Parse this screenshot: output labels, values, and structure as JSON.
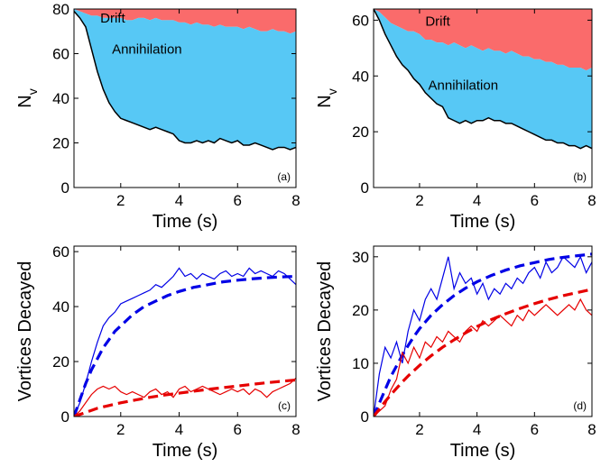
{
  "colors": {
    "drift_fill": "#fa6b6b",
    "annihilation_fill": "#57c8f5",
    "blue_line": "#0000e6",
    "red_line": "#e60000",
    "frame": "#000000"
  },
  "chart_data": [
    {
      "id": "a",
      "type": "area",
      "panel_label": "(a)",
      "xlabel": "Time (s)",
      "ylabel": "N",
      "ylabel_sub": "v",
      "xlim": [
        0.4,
        8
      ],
      "ylim": [
        0,
        80
      ],
      "xticks": [
        2,
        4,
        6,
        8
      ],
      "yticks": [
        0,
        20,
        40,
        60,
        80
      ],
      "grid": false,
      "annotations": {
        "drift": "Drift",
        "annihilation": "Annihilation"
      },
      "series": [
        {
          "name": "Annihilation",
          "x": [
            0.4,
            0.6,
            0.8,
            1.0,
            1.2,
            1.4,
            1.6,
            1.8,
            2.0,
            2.2,
            2.4,
            2.6,
            2.8,
            3.0,
            3.2,
            3.4,
            3.6,
            3.8,
            4.0,
            4.2,
            4.4,
            4.6,
            4.8,
            5.0,
            5.2,
            5.4,
            5.6,
            5.8,
            6.0,
            6.2,
            6.4,
            6.6,
            6.8,
            7.0,
            7.2,
            7.4,
            7.6,
            7.8,
            8.0
          ],
          "y": [
            79,
            76,
            72,
            62,
            52,
            44,
            38,
            34,
            31,
            30,
            29,
            28,
            27,
            26,
            27,
            26,
            25,
            24,
            21,
            20,
            20,
            21,
            20,
            21,
            20,
            22,
            21,
            20,
            21,
            19,
            19,
            20,
            19,
            18,
            17,
            18,
            18,
            17,
            18
          ]
        },
        {
          "name": "Drift",
          "x": [
            0.4,
            0.6,
            0.8,
            1.0,
            1.2,
            1.4,
            1.6,
            1.8,
            2.0,
            2.2,
            2.4,
            2.6,
            2.8,
            3.0,
            3.2,
            3.4,
            3.6,
            3.8,
            4.0,
            4.2,
            4.4,
            4.6,
            4.8,
            5.0,
            5.2,
            5.4,
            5.6,
            5.8,
            6.0,
            6.2,
            6.4,
            6.6,
            6.8,
            7.0,
            7.2,
            7.4,
            7.6,
            7.8,
            8.0
          ],
          "y": [
            80,
            79,
            78,
            77,
            77,
            76,
            76,
            76,
            76,
            75,
            75,
            76,
            76,
            75,
            76,
            75,
            75,
            75,
            74,
            74,
            73,
            74,
            73,
            73,
            72,
            73,
            72,
            72,
            72,
            71,
            72,
            71,
            70,
            70,
            71,
            70,
            70,
            69,
            70
          ]
        }
      ]
    },
    {
      "id": "b",
      "type": "area",
      "panel_label": "(b)",
      "xlabel": "Time (s)",
      "ylabel": "N",
      "ylabel_sub": "v",
      "xlim": [
        0.4,
        8
      ],
      "ylim": [
        0,
        64
      ],
      "xticks": [
        2,
        4,
        6,
        8
      ],
      "yticks": [
        0,
        20,
        40,
        60
      ],
      "grid": false,
      "annotations": {
        "drift": "Drift",
        "annihilation": "Annihilation"
      },
      "series": [
        {
          "name": "Annihilation",
          "x": [
            0.4,
            0.6,
            0.8,
            1.0,
            1.2,
            1.4,
            1.6,
            1.8,
            2.0,
            2.2,
            2.4,
            2.6,
            2.8,
            3.0,
            3.2,
            3.4,
            3.6,
            3.8,
            4.0,
            4.2,
            4.4,
            4.6,
            4.8,
            5.0,
            5.2,
            5.4,
            5.6,
            5.8,
            6.0,
            6.2,
            6.4,
            6.6,
            6.8,
            7.0,
            7.2,
            7.4,
            7.6,
            7.8,
            8.0
          ],
          "y": [
            64,
            60,
            55,
            51,
            47,
            44,
            42,
            39,
            37,
            34,
            32,
            30,
            29,
            25,
            24,
            23,
            24,
            23,
            24,
            24,
            25,
            24,
            24,
            23,
            23,
            22,
            21,
            20,
            19,
            18,
            17,
            17,
            16,
            16,
            15,
            15,
            14,
            15,
            14
          ]
        },
        {
          "name": "Drift",
          "x": [
            0.4,
            0.6,
            0.8,
            1.0,
            1.2,
            1.4,
            1.6,
            1.8,
            2.0,
            2.2,
            2.4,
            2.6,
            2.8,
            3.0,
            3.2,
            3.4,
            3.6,
            3.8,
            4.0,
            4.2,
            4.4,
            4.6,
            4.8,
            5.0,
            5.2,
            5.4,
            5.6,
            5.8,
            6.0,
            6.2,
            6.4,
            6.6,
            6.8,
            7.0,
            7.2,
            7.4,
            7.6,
            7.8,
            8.0
          ],
          "y": [
            64,
            63,
            61,
            59,
            58,
            57,
            56,
            56,
            55,
            53,
            53,
            52,
            52,
            51,
            52,
            51,
            50,
            51,
            50,
            49,
            50,
            49,
            49,
            48,
            49,
            48,
            47,
            47,
            46,
            46,
            45,
            45,
            44,
            44,
            43,
            43,
            43,
            42,
            43
          ]
        }
      ]
    },
    {
      "id": "c",
      "type": "line",
      "panel_label": "(c)",
      "xlabel": "Time (s)",
      "ylabel": "Vortices Decayed",
      "xlim": [
        0.4,
        8
      ],
      "ylim": [
        0,
        62
      ],
      "xticks": [
        2,
        4,
        6,
        8
      ],
      "yticks": [
        0,
        20,
        40,
        60
      ],
      "grid": false,
      "series": [
        {
          "color": "blue",
          "style": "solid",
          "x": [
            0.4,
            0.6,
            0.8,
            1.0,
            1.2,
            1.4,
            1.6,
            1.8,
            2.0,
            2.2,
            2.4,
            2.6,
            2.8,
            3.0,
            3.2,
            3.4,
            3.6,
            3.8,
            4.0,
            4.2,
            4.4,
            4.6,
            4.8,
            5.0,
            5.2,
            5.4,
            5.6,
            5.8,
            6.0,
            6.2,
            6.4,
            6.6,
            6.8,
            7.0,
            7.2,
            7.4,
            7.6,
            7.8,
            8.0
          ],
          "y": [
            0,
            5,
            12,
            20,
            27,
            33,
            36,
            38,
            41,
            42,
            43,
            44,
            45,
            46,
            48,
            47,
            49,
            51,
            54,
            51,
            52,
            50,
            52,
            51,
            50,
            52,
            53,
            51,
            52,
            51,
            54,
            52,
            53,
            52,
            51,
            53,
            52,
            50,
            48
          ]
        },
        {
          "color": "blue",
          "style": "dashed",
          "x": [
            0.4,
            0.6,
            0.8,
            1.0,
            1.2,
            1.4,
            1.6,
            1.8,
            2.0,
            2.4,
            2.8,
            3.2,
            3.6,
            4.0,
            4.5,
            5.0,
            5.5,
            6.0,
            6.5,
            7.0,
            7.5,
            8.0
          ],
          "y": [
            0,
            6,
            12,
            17,
            21,
            25,
            28,
            31,
            33,
            37,
            40,
            42,
            44,
            45.5,
            47,
            48,
            49,
            49.6,
            50.1,
            50.5,
            50.8,
            51
          ]
        },
        {
          "color": "red",
          "style": "solid",
          "x": [
            0.4,
            0.6,
            0.8,
            1.0,
            1.2,
            1.4,
            1.6,
            1.8,
            2.0,
            2.2,
            2.4,
            2.6,
            2.8,
            3.0,
            3.2,
            3.4,
            3.6,
            3.8,
            4.0,
            4.2,
            4.4,
            4.6,
            4.8,
            5.0,
            5.2,
            5.4,
            5.6,
            5.8,
            6.0,
            6.2,
            6.4,
            6.6,
            6.8,
            7.0,
            7.2,
            7.4,
            7.6,
            7.8,
            8.0
          ],
          "y": [
            0,
            2,
            5,
            8,
            10,
            11,
            10,
            11,
            9,
            8,
            9,
            8,
            7,
            9,
            10,
            8,
            9,
            7,
            10,
            11,
            9,
            10,
            11,
            10,
            9,
            8,
            9,
            10,
            9,
            10,
            8,
            10,
            9,
            7,
            9,
            10,
            11,
            12,
            14
          ]
        },
        {
          "color": "red",
          "style": "dashed",
          "x": [
            0.4,
            0.8,
            1.2,
            1.6,
            2.0,
            2.5,
            3.0,
            3.5,
            4.0,
            4.5,
            5.0,
            5.5,
            6.0,
            6.5,
            7.0,
            7.5,
            8.0
          ],
          "y": [
            0,
            1.5,
            3,
            4,
            5,
            6,
            7,
            7.8,
            8.5,
            9.2,
            9.9,
            10.5,
            11.1,
            11.7,
            12.3,
            12.8,
            13.3
          ]
        }
      ]
    },
    {
      "id": "d",
      "type": "line",
      "panel_label": "(d)",
      "xlabel": "Time (s)",
      "ylabel": "Vortices Decayed",
      "xlim": [
        0.4,
        8
      ],
      "ylim": [
        0,
        32
      ],
      "xticks": [
        2,
        4,
        6,
        8
      ],
      "yticks": [
        0,
        10,
        20,
        30
      ],
      "grid": false,
      "series": [
        {
          "color": "blue",
          "style": "solid",
          "x": [
            0.4,
            0.6,
            0.8,
            1.0,
            1.2,
            1.4,
            1.6,
            1.8,
            2.0,
            2.2,
            2.4,
            2.6,
            2.8,
            3.0,
            3.2,
            3.4,
            3.6,
            3.8,
            4.0,
            4.2,
            4.4,
            4.6,
            4.8,
            5.0,
            5.2,
            5.4,
            5.6,
            5.8,
            6.0,
            6.2,
            6.4,
            6.6,
            6.8,
            7.0,
            7.2,
            7.4,
            7.6,
            7.8,
            8.0
          ],
          "y": [
            0,
            8,
            13,
            11,
            14,
            10,
            16,
            20,
            18,
            22,
            24,
            22,
            26,
            30,
            24,
            27,
            25,
            26,
            23,
            25,
            22,
            24,
            23,
            25,
            24,
            26,
            25,
            27,
            28,
            26,
            29,
            27,
            28,
            30,
            29,
            28,
            30,
            27,
            29
          ]
        },
        {
          "color": "blue",
          "style": "dashed",
          "x": [
            0.4,
            0.6,
            0.8,
            1.0,
            1.2,
            1.4,
            1.6,
            1.8,
            2.0,
            2.4,
            2.8,
            3.2,
            3.6,
            4.0,
            4.5,
            5.0,
            5.5,
            6.0,
            6.5,
            7.0,
            7.5,
            8.0
          ],
          "y": [
            0,
            2.5,
            5,
            7.5,
            9.5,
            11.5,
            13.3,
            15,
            16.5,
            19,
            21,
            22.7,
            24.1,
            25.3,
            26.5,
            27.5,
            28.3,
            28.9,
            29.5,
            29.9,
            30.2,
            30.5
          ]
        },
        {
          "color": "red",
          "style": "solid",
          "x": [
            0.4,
            0.6,
            0.8,
            1.0,
            1.2,
            1.4,
            1.6,
            1.8,
            2.0,
            2.2,
            2.4,
            2.6,
            2.8,
            3.0,
            3.2,
            3.4,
            3.6,
            3.8,
            4.0,
            4.2,
            4.4,
            4.6,
            4.8,
            5.0,
            5.2,
            5.4,
            5.6,
            5.8,
            6.0,
            6.2,
            6.4,
            6.6,
            6.8,
            7.0,
            7.2,
            7.4,
            7.6,
            7.8,
            8.0
          ],
          "y": [
            0,
            1,
            2,
            5,
            7,
            12,
            10,
            13,
            11,
            14,
            13,
            15,
            14,
            16,
            15,
            14,
            16,
            17,
            16,
            18,
            17,
            18,
            19,
            18,
            17,
            19,
            18,
            20,
            19,
            20,
            21,
            20,
            19,
            20,
            21,
            20,
            22,
            20,
            19
          ]
        },
        {
          "color": "red",
          "style": "dashed",
          "x": [
            0.4,
            0.6,
            0.8,
            1.0,
            1.2,
            1.4,
            1.6,
            1.8,
            2.0,
            2.4,
            2.8,
            3.2,
            3.6,
            4.0,
            4.5,
            5.0,
            5.5,
            6.0,
            6.5,
            7.0,
            7.5,
            8.0
          ],
          "y": [
            0,
            1.4,
            2.8,
            4.1,
            5.3,
            6.5,
            7.6,
            8.6,
            9.6,
            11.4,
            13,
            14.4,
            15.7,
            16.9,
            18.2,
            19.3,
            20.3,
            21.2,
            22,
            22.7,
            23.3,
            23.9
          ]
        }
      ]
    }
  ]
}
